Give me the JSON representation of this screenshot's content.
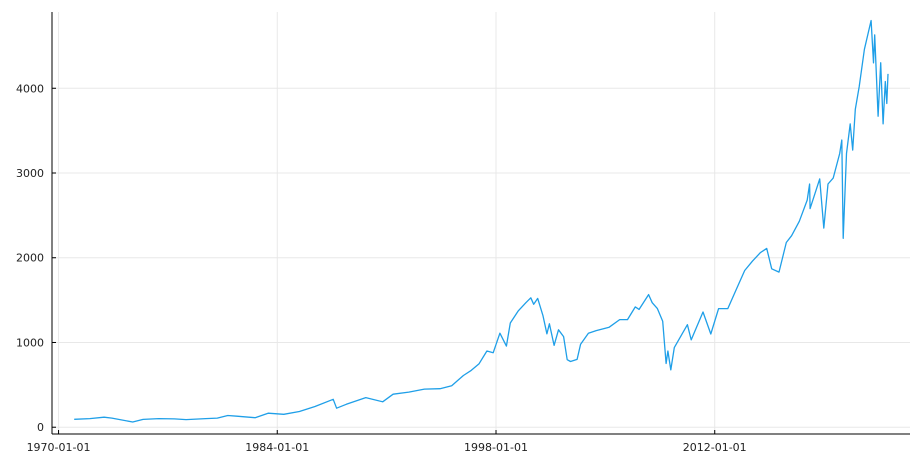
{
  "chart_data": {
    "type": "line",
    "title": "",
    "xlabel": "",
    "ylabel": "",
    "x_is_date": true,
    "xlim": [
      "1969-08-01",
      "2024-07-01"
    ],
    "ylim": [
      -80,
      4900
    ],
    "grid": true,
    "legend": "none",
    "x_ticks": [
      "1970-01-01",
      "1984-01-01",
      "1998-01-01",
      "2012-01-01"
    ],
    "y_ticks": [
      0,
      1000,
      2000,
      3000,
      4000
    ],
    "colors": {
      "series": "#1f9fe8"
    },
    "series": [
      {
        "name": "",
        "x": [
          "1971-01-01",
          "1972-01-01",
          "1972-12-01",
          "1973-06-01",
          "1974-10-01",
          "1975-06-01",
          "1976-06-01",
          "1977-06-01",
          "1978-03-01",
          "1979-06-01",
          "1980-03-01",
          "1980-11-01",
          "1981-06-01",
          "1982-08-01",
          "1983-06-01",
          "1984-06-01",
          "1985-06-01",
          "1986-06-01",
          "1987-08-01",
          "1987-10-20",
          "1988-06-01",
          "1989-09-01",
          "1990-10-01",
          "1991-06-01",
          "1992-06-01",
          "1993-06-01",
          "1994-06-01",
          "1995-03-01",
          "1995-12-01",
          "1996-06-01",
          "1996-12-01",
          "1997-06-01",
          "1997-10-27",
          "1998-04-01",
          "1998-08-31",
          "1998-12-01",
          "1999-06-01",
          "1999-12-01",
          "2000-03-24",
          "2000-06-01",
          "2000-09-01",
          "2001-01-01",
          "2001-04-04",
          "2001-06-01",
          "2001-09-21",
          "2002-01-01",
          "2002-05-01",
          "2002-07-23",
          "2002-10-09",
          "2003-03-11",
          "2003-06-01",
          "2003-12-01",
          "2004-06-01",
          "2005-04-01",
          "2005-12-01",
          "2006-06-01",
          "2006-12-01",
          "2007-03-01",
          "2007-10-09",
          "2008-01-01",
          "2008-05-01",
          "2008-09-01",
          "2008-11-20",
          "2009-01-01",
          "2009-03-09",
          "2009-06-01",
          "2010-04-01",
          "2010-07-01",
          "2011-04-01",
          "2011-10-01",
          "2012-04-01",
          "2012-11-01",
          "2013-06-01",
          "2013-12-01",
          "2014-06-01",
          "2014-12-01",
          "2015-05-01",
          "2015-08-25",
          "2016-02-11",
          "2016-08-01",
          "2016-12-01",
          "2017-06-01",
          "2017-12-01",
          "2018-01-26",
          "2018-02-08",
          "2018-09-20",
          "2018-12-24",
          "2019-04-01",
          "2019-08-01",
          "2019-12-31",
          "2020-02-19",
          "2020-03-23",
          "2020-06-08",
          "2020-09-02",
          "2020-10-30",
          "2020-12-31",
          "2021-04-01",
          "2021-08-01",
          "2022-01-03",
          "2022-03-01",
          "2022-03-29",
          "2022-06-16",
          "2022-08-16",
          "2022-10-12",
          "2022-12-01",
          "2023-01-05",
          "2023-02-02"
        ],
        "values": [
          93,
          102,
          118,
          108,
          62,
          92,
          102,
          98,
          90,
          102,
          108,
          138,
          130,
          112,
          165,
          152,
          185,
          245,
          330,
          225,
          270,
          350,
          300,
          390,
          415,
          450,
          455,
          490,
          610,
          670,
          750,
          900,
          880,
          1110,
          957,
          1230,
          1370,
          1470,
          1527,
          1450,
          1520,
          1320,
          1103,
          1220,
          965,
          1150,
          1070,
          797,
          776,
          800,
          980,
          1110,
          1140,
          1180,
          1270,
          1270,
          1420,
          1390,
          1565,
          1470,
          1400,
          1250,
          752,
          900,
          676,
          940,
          1210,
          1030,
          1360,
          1100,
          1400,
          1400,
          1640,
          1850,
          1960,
          2060,
          2110,
          1870,
          1830,
          2180,
          2260,
          2430,
          2680,
          2870,
          2580,
          2930,
          2350,
          2870,
          2940,
          3230,
          3390,
          2230,
          3230,
          3580,
          3270,
          3750,
          4020,
          4460,
          4800,
          4300,
          4630,
          3670,
          4300,
          3580,
          4080,
          3820,
          4170
        ]
      }
    ]
  }
}
